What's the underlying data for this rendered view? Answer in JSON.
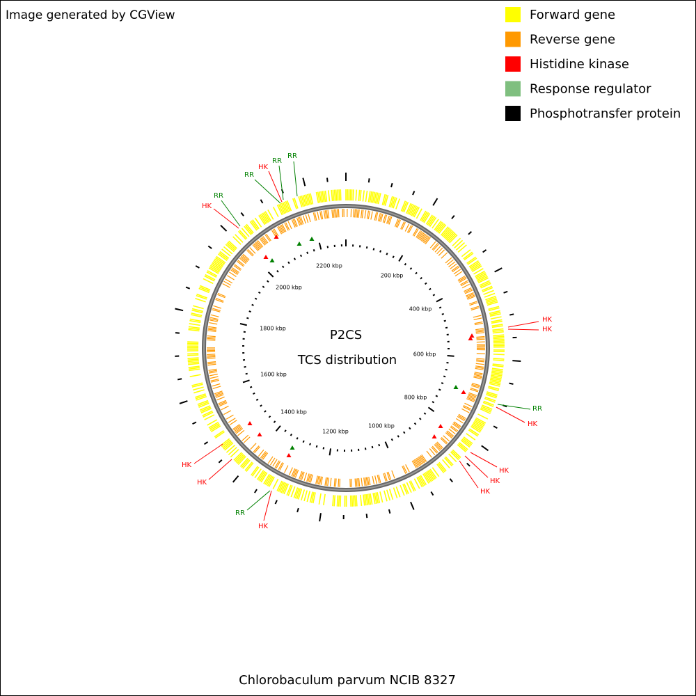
{
  "header": {
    "credit": "Image generated by CGView"
  },
  "legend": [
    {
      "label": "Forward gene",
      "color": "#ffff00"
    },
    {
      "label": "Reverse gene",
      "color": "#ff9900"
    },
    {
      "label": "Histidine kinase",
      "color": "#ff0000"
    },
    {
      "label": "Response regulator",
      "color": "#7fbf7f"
    },
    {
      "label": "Phosphotransfer protein",
      "color": "#000000"
    }
  ],
  "center": {
    "title": "P2CS",
    "subtitle": "TCS distribution"
  },
  "ruler_labels": [
    "200 kbp",
    "400 kbp",
    "600 kbp",
    "800 kbp",
    "1000 kbp",
    "1200 kbp",
    "1400 kbp",
    "1600 kbp",
    "1800 kbp",
    "2000 kbp",
    "2200 kbp"
  ],
  "features": [
    {
      "label": "RR"
    },
    {
      "label": "HK"
    },
    {
      "label": "RR"
    },
    {
      "label": "HK"
    },
    {
      "label": "RR"
    },
    {
      "label": "RR"
    },
    {
      "label": "HK"
    },
    {
      "label": "HK"
    },
    {
      "label": "RR"
    },
    {
      "label": "HK"
    },
    {
      "label": "HK"
    },
    {
      "label": "HK"
    },
    {
      "label": "HK"
    },
    {
      "label": "HK"
    },
    {
      "label": "HK"
    },
    {
      "label": "RR"
    },
    {
      "label": "HK"
    }
  ],
  "footer": {
    "organism": "Chlorobaculum parvum NCIB 8327"
  }
}
